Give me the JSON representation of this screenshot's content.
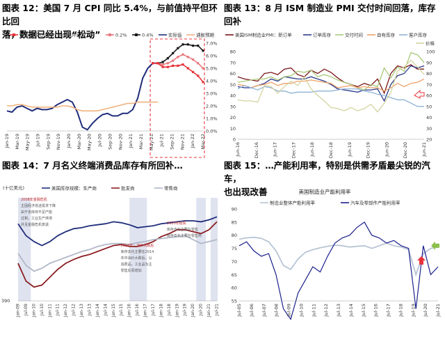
{
  "panels": [
    {
      "title": "图表 12：美国 7 月 CPI 同比 5.4%，与前值持平但环比回落，数据已经出现“松动”",
      "title_lines": [
        "图表 12：美国 7 月 CPI 同比 5.4%，与前值持平但环比回",
        "落，数据已经出现“松动”"
      ]
    },
    {
      "title": "图表 13：8 月 ISM 制造业 PMI 交付时间回落，库存回补",
      "title_lines": [
        "图表 13：8 月 ISM 制造业 PMI 交付时间回落，库存回补"
      ]
    },
    {
      "title": "图表 14：7 月名义终端消费品库存有所回补…",
      "title_lines": [
        "图表 14：7 月名义终端消费品库存有所回补…"
      ]
    },
    {
      "title": "图表 15：…产能利用率，特别是供需矛盾最尖锐的汽车，也出现改善",
      "title_lines": [
        "图表 15：…产能利用率，特别是供需矛盾最尖锐的汽车，",
        "也出现改善"
      ]
    }
  ],
  "chart_data": [
    {
      "type": "line",
      "legend": [
        "美国CPI同比预测：假设月环比 0.1%",
        "0.2%",
        "0.4%",
        "实际值",
        "通胀预期"
      ],
      "legend_placement": "top",
      "colors": {
        "forecast_0_1": "#e8333b",
        "forecast_0_2": "#e87a7f",
        "forecast_0_4": "#1a1a1a",
        "actual": "#1f2d7a",
        "expectation": "#f0b37e"
      },
      "yticks_right": [
        "0.0%",
        "1.0%",
        "2.0%",
        "3.0%",
        "4.0%",
        "5.0%",
        "6.0%",
        "7.0%"
      ],
      "ylim": [
        0,
        7
      ],
      "xticks": [
        "Jan-19",
        "Mar-19",
        "May-19",
        "Jul-19",
        "Sep-19",
        "Nov-19",
        "Jan-20",
        "Mar-20",
        "May-20",
        "Jul-20",
        "Sep-20",
        "Nov-20",
        "Jan-21",
        "Mar-21",
        "May-21",
        "Jul-21",
        "Sep-21",
        "Nov-21",
        "Jan-22",
        "Mar-22"
      ],
      "highlight_box": "dashed red box, Jun-21 to Apr-22",
      "series": [
        {
          "name": "实际值",
          "values": [
            1.6,
            1.5,
            1.9,
            2.0,
            1.8,
            1.6,
            1.8,
            1.7,
            1.7,
            1.8,
            2.1,
            2.3,
            2.5,
            2.3,
            1.5,
            0.3,
            0.1,
            0.6,
            1.0,
            1.3,
            1.4,
            1.2,
            1.2,
            1.4,
            1.4,
            1.7,
            2.6,
            4.2,
            5.0,
            5.4,
            5.4
          ]
        },
        {
          "name": "通胀预期",
          "values": [
            2.0,
            2.0,
            2.1,
            2.1,
            2.0,
            1.9,
            1.9,
            1.9,
            1.9,
            1.9,
            1.9,
            2.0,
            2.0,
            1.9,
            1.7,
            1.6,
            1.6,
            1.6,
            1.6,
            1.7,
            1.8,
            1.9,
            2.0,
            2.1,
            2.2,
            2.2,
            2.3,
            2.3,
            2.3,
            2.3,
            2.3
          ]
        },
        {
          "name": "0.4%",
          "start_index": 29,
          "values": [
            5.4,
            5.4,
            5.5,
            5.8,
            6.2,
            6.6,
            6.9,
            6.9,
            6.8,
            6.8,
            6.4
          ]
        },
        {
          "name": "0.2%",
          "start_index": 29,
          "values": [
            5.4,
            5.4,
            5.3,
            5.4,
            5.6,
            5.9,
            6.1,
            5.9,
            5.7,
            5.4,
            5.0
          ]
        },
        {
          "name": "假设月环比 0.1%",
          "start_index": 29,
          "values": [
            5.4,
            5.4,
            5.1,
            5.1,
            5.2,
            5.2,
            5.3,
            5.0,
            4.7,
            4.4,
            3.9
          ]
        }
      ]
    },
    {
      "type": "line",
      "legend": [
        "美国ISM制造业PMI：新订单",
        "订单库存",
        "交付时间",
        "自有库存",
        "客户库存",
        "价格"
      ],
      "legend_placement": "top",
      "colors": {
        "new_orders": "#7a1518",
        "backlog": "#2a3a8a",
        "delivery": "#a9c97a",
        "inventory": "#f0a068",
        "customer_inv": "#8fb3d6",
        "prices": "#d4d4a0"
      },
      "yticks_left": [
        "0",
        "10",
        "20",
        "30",
        "40",
        "50",
        "60",
        "70",
        "80"
      ],
      "ylim_left": [
        0,
        80
      ],
      "yticks_right": [
        "20",
        "30",
        "40",
        "50",
        "60",
        "70",
        "80",
        "90",
        "100"
      ],
      "ylim_right": [
        20,
        100
      ],
      "xticks": [
        "Jun-16",
        "Dec-16",
        "Jun-17",
        "Dec-17",
        "Jun-18",
        "Dec-18",
        "Jun-19",
        "Dec-19",
        "Jun-20",
        "Dec-20",
        "Jun-21"
      ],
      "series": [
        {
          "name": "新订单",
          "values": [
            57,
            55,
            54,
            53,
            60,
            61,
            59,
            64,
            65,
            59,
            57,
            63,
            60,
            64,
            61,
            56,
            52,
            50,
            48,
            51,
            49,
            55,
            42,
            60,
            67,
            65,
            68,
            64,
            64
          ]
        },
        {
          "name": "订单库存",
          "values": [
            48,
            47,
            47,
            49,
            51,
            55,
            53,
            57,
            56,
            55,
            55,
            57,
            55,
            53,
            50,
            46,
            45,
            44,
            43,
            45,
            45,
            46,
            35,
            50,
            58,
            60,
            67,
            65,
            67
          ]
        },
        {
          "name": "交付时间",
          "values": [
            52,
            53,
            54,
            55,
            55,
            57,
            54,
            57,
            58,
            62,
            61,
            63,
            57,
            59,
            57,
            54,
            52,
            50,
            47,
            45,
            50,
            48,
            65,
            56,
            66,
            62,
            79,
            77,
            70
          ]
        },
        {
          "name": "自有库存",
          "values": [
            50,
            49,
            47,
            49,
            50,
            52,
            49,
            51,
            51,
            53,
            53,
            54,
            53,
            52,
            51,
            47,
            48,
            49,
            47,
            48,
            47,
            47,
            44,
            47,
            51,
            48,
            51,
            52,
            55
          ]
        },
        {
          "name": "客户库存",
          "values": [
            46,
            49,
            47,
            45,
            48,
            47,
            44,
            44,
            42,
            43,
            43,
            43,
            44,
            44,
            44,
            45,
            46,
            46,
            46,
            44,
            43,
            41,
            40,
            38,
            36,
            36,
            33,
            30,
            30
          ]
        },
        {
          "name": "价格",
          "values": [
            56,
            55,
            55,
            54,
            69,
            68,
            62,
            68,
            73,
            69,
            77,
            66,
            60,
            55,
            49,
            48,
            46,
            49,
            46,
            48,
            52,
            45,
            53,
            63,
            82,
            86,
            92,
            86,
            79
          ]
        }
      ]
    },
    {
      "type": "line",
      "unit_label": "(十亿美元)",
      "legend": [
        "美国库存规模：生产商",
        "批发商",
        "零售商"
      ],
      "legend_placement": "top",
      "colors": {
        "manufacturers": "#1f2d7a",
        "wholesalers": "#8b1e22",
        "retailers": "#b0b8c8",
        "shade": "#dfe3f0"
      },
      "ytick_bottom": "390",
      "xticks": [
        "Jan-09",
        "Jul-09",
        "Jan-10",
        "Jul-10",
        "Jan-11",
        "Jul-11",
        "Jan-12",
        "Jul-12",
        "Jan-13",
        "Jul-13",
        "Jan-14",
        "Jul-14",
        "Jan-15",
        "Jul-15",
        "Jan-16",
        "Jul-16",
        "Jan-17",
        "Jul-17",
        "Jan-18",
        "Jul-18",
        "Jan-19",
        "Jul-19",
        "Jan-20",
        "Jul-20",
        "Jan-21",
        "Jul-21"
      ],
      "annotations": [
        "2008年金融危机\n主因经济低迷需求下降\n由于去库存不足产能\n过剩，工业生产停滞\n并且金融危机衰退",
        "2020年疫情\n库存去化主要在零售\n库存去化主要在零售商",
        "2016年：油价大跌后\n库存去化主要在2014\n年中油价大跌后，以\n消费品，工业品为主\n零售反而增加"
      ],
      "series": [
        {
          "name": "生产商",
          "values": [
            0.78,
            0.66,
            0.6,
            0.56,
            0.6,
            0.66,
            0.7,
            0.73,
            0.74,
            0.76,
            0.77,
            0.78,
            0.8,
            0.79,
            0.77,
            0.74,
            0.75,
            0.76,
            0.78,
            0.79,
            0.8,
            0.81,
            0.81,
            0.8,
            0.82,
            0.85
          ]
        },
        {
          "name": "批发商",
          "values": [
            0.38,
            0.2,
            0.14,
            0.16,
            0.24,
            0.32,
            0.38,
            0.42,
            0.45,
            0.47,
            0.5,
            0.53,
            0.56,
            0.57,
            0.55,
            0.55,
            0.57,
            0.6,
            0.65,
            0.68,
            0.72,
            0.72,
            0.7,
            0.68,
            0.72,
            0.8
          ]
        },
        {
          "name": "零售商",
          "values": [
            0.48,
            0.36,
            0.3,
            0.33,
            0.38,
            0.41,
            0.44,
            0.47,
            0.5,
            0.52,
            0.55,
            0.57,
            0.58,
            0.58,
            0.57,
            0.59,
            0.6,
            0.62,
            0.63,
            0.64,
            0.65,
            0.66,
            0.62,
            0.58,
            0.6,
            0.62
          ]
        }
      ]
    },
    {
      "type": "line",
      "title": "美国制造业产能利用率",
      "legend": [
        "制造业整体产能利用率",
        "汽车及零部件产能利用率"
      ],
      "legend_placement": "top",
      "colors": {
        "overall": "#b8c4d6",
        "autos": "#1a1f8c"
      },
      "yticks": [
        "55",
        "60",
        "65",
        "70",
        "75",
        "80",
        "85",
        "90"
      ],
      "ylim": [
        55,
        90
      ],
      "xticks": [
        "Jul-05",
        "Jul-06",
        "Jul-07",
        "Jul-08",
        "Jul-09",
        "Jul-10",
        "Jul-11",
        "Jul-12",
        "Jul-13",
        "Jul-14",
        "Jul-15",
        "Jul-16",
        "Jul-17",
        "Jul-18",
        "Jul-19",
        "Jul-20",
        "Jul-21"
      ],
      "series": [
        {
          "name": "制造业整体产能利用率",
          "values": [
            78.5,
            79.0,
            79.2,
            78.8,
            77.5,
            74.0,
            68.5,
            67.0,
            71.0,
            73.5,
            74.5,
            75.2,
            75.8,
            76.2,
            76.0,
            75.5,
            75.8,
            76.0,
            75.0,
            76.0,
            77.0,
            76.0,
            75.5,
            74.5,
            65.0,
            73.0,
            75.0,
            75.5
          ]
        },
        {
          "name": "汽车及零部件产能利用率",
          "values": [
            76.0,
            77.5,
            74.0,
            72.0,
            73.0,
            65.0,
            52.0,
            48.0,
            58.0,
            63.0,
            68.0,
            66.0,
            72.0,
            77.0,
            79.0,
            80.0,
            83.0,
            85.0,
            80.0,
            79.0,
            77.0,
            78.0,
            76.0,
            75.0,
            52.0,
            76.0,
            65.0,
            68.0
          ]
        }
      ]
    }
  ]
}
